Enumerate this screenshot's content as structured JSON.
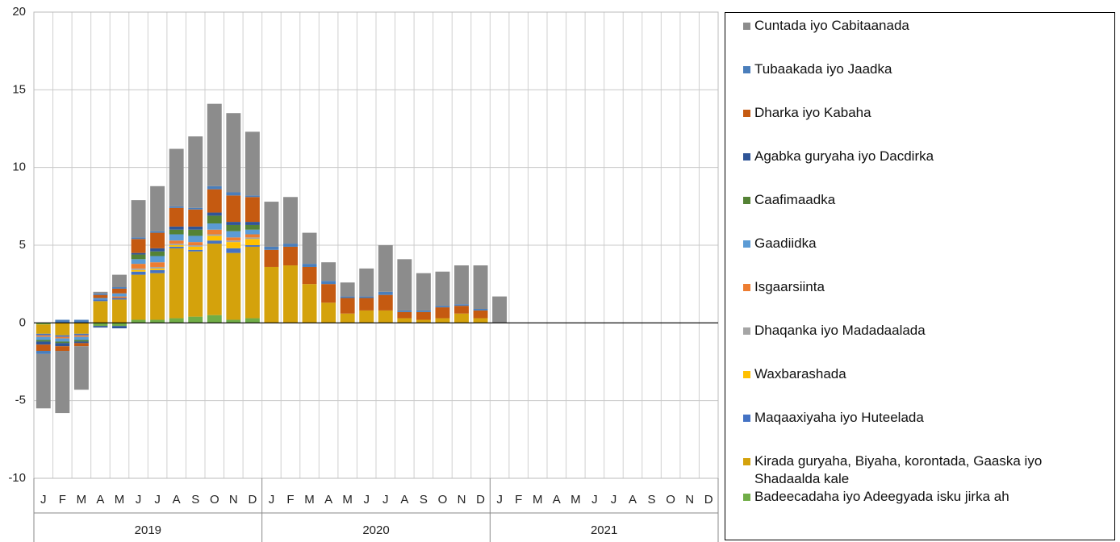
{
  "chart_data": {
    "type": "stacked-bar",
    "categories": [
      "J",
      "F",
      "M",
      "A",
      "M",
      "J",
      "J",
      "A",
      "S",
      "O",
      "N",
      "D",
      "J",
      "F",
      "M",
      "A",
      "M",
      "J",
      "J",
      "A",
      "S",
      "O",
      "N",
      "D",
      "J",
      "F",
      "M",
      "A",
      "M",
      "J",
      "J",
      "A",
      "S",
      "O",
      "N",
      "D"
    ],
    "years": [
      "2019",
      "2020",
      "2021"
    ],
    "ylim": [
      -10,
      20
    ],
    "yticks": [
      -10,
      -5,
      0,
      5,
      10,
      15,
      20
    ],
    "grid": true,
    "legend": "right",
    "series": [
      {
        "name": "Cuntada iyo Cabitaanada",
        "color": "#8c8c8c",
        "values": [
          -3.5,
          -4.0,
          -2.8,
          0.1,
          0.8,
          2.4,
          2.9,
          3.7,
          4.6,
          5.3,
          5.1,
          4.1,
          2.9,
          3.0,
          2.0,
          1.2,
          0.9,
          1.8,
          3.0,
          3.3,
          2.4,
          2.2,
          2.5,
          2.8,
          1.7,
          null,
          null,
          null,
          null,
          null,
          null,
          null,
          null,
          null,
          null,
          null
        ]
      },
      {
        "name": "Tubaakada iyo Jaadka",
        "color": "#4a7ebb",
        "values": [
          -0.2,
          0.2,
          0.2,
          0.1,
          0.1,
          0.1,
          0.1,
          0.1,
          0.1,
          0.2,
          0.2,
          0.1,
          0.2,
          0.2,
          0.2,
          0.2,
          0.1,
          0.1,
          0.2,
          0.1,
          0.1,
          0.1,
          0.1,
          0.1,
          0,
          null,
          null,
          null,
          null,
          null,
          null,
          null,
          null,
          null,
          null,
          null
        ]
      },
      {
        "name": "Dharka iyo Kabaha",
        "color": "#c55a11",
        "values": [
          -0.4,
          -0.3,
          -0.2,
          0.2,
          0.3,
          0.9,
          1.0,
          1.2,
          1.1,
          1.5,
          1.7,
          1.6,
          1.1,
          1.2,
          1.1,
          1.2,
          1.0,
          0.8,
          1.0,
          0.4,
          0.5,
          0.7,
          0.5,
          0.5,
          0,
          null,
          null,
          null,
          null,
          null,
          null,
          null,
          null,
          null,
          null,
          null
        ]
      },
      {
        "name": "Agabka guryaha iyo Dacdirka",
        "color": "#2f5597",
        "values": [
          -0.2,
          -0.2,
          -0.1,
          -0.1,
          -0.15,
          0.1,
          0.2,
          0.2,
          0.2,
          0.2,
          0.2,
          0.2,
          0,
          0,
          0,
          0,
          0,
          0,
          0,
          0,
          0,
          0,
          0,
          0,
          0,
          null,
          null,
          null,
          null,
          null,
          null,
          null,
          null,
          null,
          null,
          null
        ]
      },
      {
        "name": "Caafimaadka",
        "color": "#548235",
        "values": [
          -0.1,
          -0.1,
          -0.1,
          0,
          0,
          0.3,
          0.3,
          0.3,
          0.4,
          0.5,
          0.4,
          0.3,
          0,
          0,
          0,
          0,
          0,
          0,
          0,
          0,
          0,
          0,
          0,
          0,
          0,
          null,
          null,
          null,
          null,
          null,
          null,
          null,
          null,
          null,
          null,
          null
        ]
      },
      {
        "name": "Gaadiidka",
        "color": "#5b9bd5",
        "values": [
          -0.2,
          -0.2,
          -0.2,
          0.1,
          0.2,
          0.3,
          0.4,
          0.4,
          0.4,
          0.4,
          0.4,
          0.3,
          0,
          0,
          0,
          0,
          0,
          0,
          0,
          0,
          0,
          0,
          0,
          0,
          0,
          null,
          null,
          null,
          null,
          null,
          null,
          null,
          null,
          null,
          null,
          null
        ]
      },
      {
        "name": "Isgaarsiinta",
        "color": "#ed7d31",
        "values": [
          -0.1,
          -0.1,
          -0.1,
          0,
          0.1,
          0.3,
          0.3,
          0.2,
          0.2,
          0.3,
          0.2,
          0.2,
          0,
          0,
          0,
          0,
          0,
          0,
          0,
          0,
          0,
          0,
          0,
          0,
          0,
          null,
          null,
          null,
          null,
          null,
          null,
          null,
          null,
          null,
          null,
          null
        ]
      },
      {
        "name": "Dhaqanka iyo Madadaalada",
        "color": "#a5a5a5",
        "values": [
          0,
          0,
          0,
          0,
          0,
          0.1,
          0.1,
          0.1,
          0.1,
          0.1,
          0.1,
          0.1,
          0,
          0,
          0,
          0,
          0,
          0,
          0,
          0,
          0,
          0,
          0,
          0,
          0,
          null,
          null,
          null,
          null,
          null,
          null,
          null,
          null,
          null,
          null,
          null
        ]
      },
      {
        "name": "Waxbarashada",
        "color": "#ffc000",
        "values": [
          0,
          0,
          0,
          0,
          0,
          0.1,
          0.1,
          0.1,
          0.2,
          0.3,
          0.4,
          0.4,
          0,
          0,
          0,
          0,
          0,
          0,
          0,
          0,
          0,
          0,
          0,
          0,
          0,
          null,
          null,
          null,
          null,
          null,
          null,
          null,
          null,
          null,
          null,
          null
        ]
      },
      {
        "name": "Maqaaxiyaha iyo Huteelada",
        "color": "#4472c4",
        "values": [
          -0.1,
          -0.1,
          -0.1,
          0.1,
          0.1,
          0.2,
          0.2,
          0.1,
          0.1,
          0.2,
          0.3,
          0.1,
          0,
          0,
          0,
          0,
          0,
          0,
          0,
          0,
          0,
          0,
          0,
          0,
          0,
          null,
          null,
          null,
          null,
          null,
          null,
          null,
          null,
          null,
          null,
          null
        ]
      },
      {
        "name": "Kirada guryaha, Biyaha, korontada, Gaaska iyo Shadaalda kale",
        "color": "#d4a20c",
        "values": [
          -0.6,
          -0.8,
          -0.7,
          1.4,
          1.5,
          2.9,
          3.0,
          4.5,
          4.2,
          4.6,
          4.3,
          4.6,
          3.6,
          3.7,
          2.5,
          1.3,
          0.6,
          0.8,
          0.8,
          0.3,
          0.2,
          0.3,
          0.6,
          0.3,
          0,
          null,
          null,
          null,
          null,
          null,
          null,
          null,
          null,
          null,
          null,
          null
        ]
      },
      {
        "name": "Badeecadaha iyo Adeegyada isku jirka ah",
        "color": "#70ad47",
        "values": [
          -0.1,
          0,
          0,
          -0.2,
          -0.2,
          0.2,
          0.2,
          0.3,
          0.4,
          0.5,
          0.2,
          0.3,
          0,
          0,
          0,
          0,
          0,
          0,
          0,
          0,
          0,
          0,
          0,
          0,
          0,
          null,
          null,
          null,
          null,
          null,
          null,
          null,
          null,
          null,
          null,
          null
        ]
      }
    ]
  }
}
